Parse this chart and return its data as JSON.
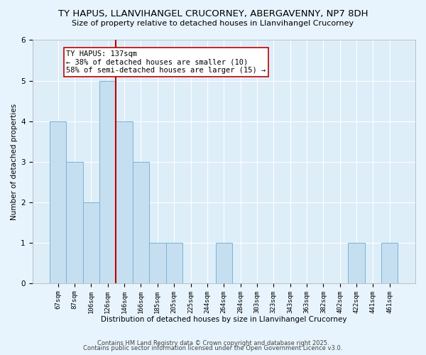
{
  "title": "TY HAPUS, LLANVIHANGEL CRUCORNEY, ABERGAVENNY, NP7 8DH",
  "subtitle": "Size of property relative to detached houses in Llanvihangel Crucorney",
  "xlabel": "Distribution of detached houses by size in Llanvihangel Crucorney",
  "ylabel": "Number of detached properties",
  "categories": [
    "67sqm",
    "87sqm",
    "106sqm",
    "126sqm",
    "146sqm",
    "166sqm",
    "185sqm",
    "205sqm",
    "225sqm",
    "244sqm",
    "264sqm",
    "284sqm",
    "303sqm",
    "323sqm",
    "343sqm",
    "363sqm",
    "382sqm",
    "402sqm",
    "422sqm",
    "441sqm",
    "461sqm"
  ],
  "values": [
    4,
    3,
    2,
    5,
    4,
    3,
    1,
    1,
    0,
    0,
    1,
    0,
    0,
    0,
    0,
    0,
    0,
    0,
    1,
    0,
    1
  ],
  "bar_color": "#c5dff0",
  "bar_edge_color": "#7ab3d4",
  "vline_color": "#c00000",
  "annotation_text": "TY HAPUS: 137sqm\n← 38% of detached houses are smaller (10)\n58% of semi-detached houses are larger (15) →",
  "annotation_box_color": "#ffffff",
  "annotation_box_edge_color": "#c00000",
  "ylim": [
    0,
    6
  ],
  "yticks": [
    0,
    1,
    2,
    3,
    4,
    5,
    6
  ],
  "footer_line1": "Contains HM Land Registry data © Crown copyright and database right 2025.",
  "footer_line2": "Contains public sector information licensed under the Open Government Licence v3.0.",
  "fig_bg_color": "#f0f8ff",
  "plot_bg_color": "#ddeeff",
  "title_fontsize": 9.5,
  "subtitle_fontsize": 8,
  "axis_label_fontsize": 7.5,
  "tick_fontsize": 6.5,
  "annotation_fontsize": 7.5,
  "footer_fontsize": 6
}
